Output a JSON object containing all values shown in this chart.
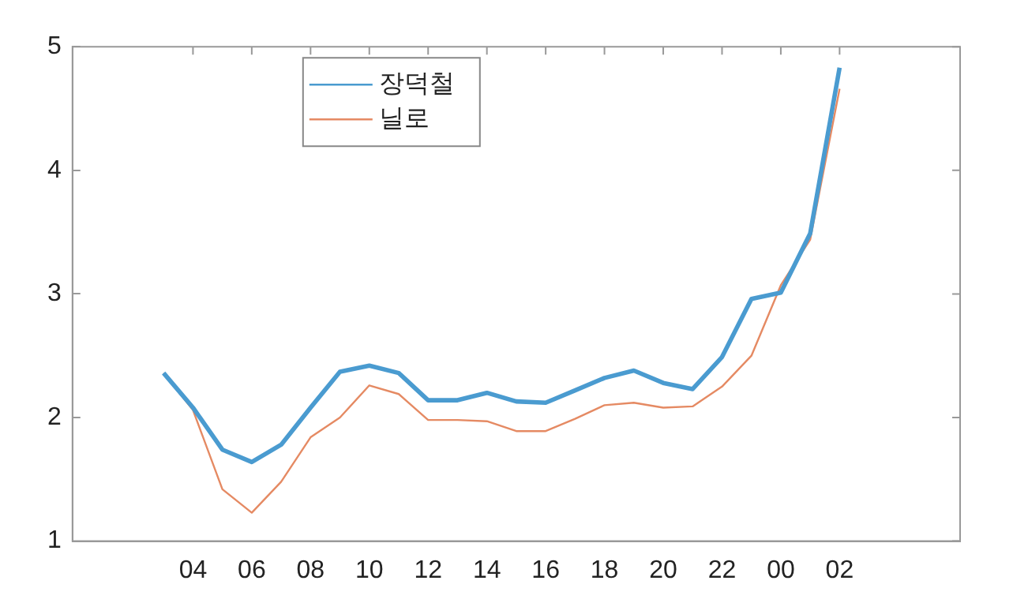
{
  "chart_data": {
    "type": "line",
    "categories": [
      null,
      "04",
      null,
      "06",
      null,
      "08",
      null,
      "10",
      null,
      "12",
      null,
      "14",
      null,
      "16",
      null,
      "18",
      null,
      "20",
      null,
      "22",
      null,
      "00",
      null,
      "02"
    ],
    "series": [
      {
        "name": "장덕철",
        "color": "#4a9bd0",
        "values": [
          2.36,
          2.08,
          1.74,
          1.64,
          1.78,
          2.08,
          2.37,
          2.42,
          2.36,
          2.14,
          2.14,
          2.2,
          2.13,
          2.12,
          2.22,
          2.32,
          2.38,
          2.28,
          2.23,
          2.49,
          2.96,
          3.01,
          3.49,
          4.83
        ]
      },
      {
        "name": "닐로",
        "color": "#e58a63",
        "values": [
          2.36,
          2.06,
          1.42,
          1.23,
          1.48,
          1.84,
          2.0,
          2.26,
          2.19,
          1.98,
          1.98,
          1.97,
          1.89,
          1.89,
          1.99,
          2.1,
          2.12,
          2.08,
          2.09,
          2.25,
          2.5,
          3.07,
          3.44,
          4.66
        ]
      }
    ],
    "ylim": [
      1,
      5
    ],
    "yticks": [
      1,
      2,
      3,
      4,
      5
    ],
    "grid": false,
    "legend": "top left",
    "marker": "none",
    "line_style": "solid"
  }
}
